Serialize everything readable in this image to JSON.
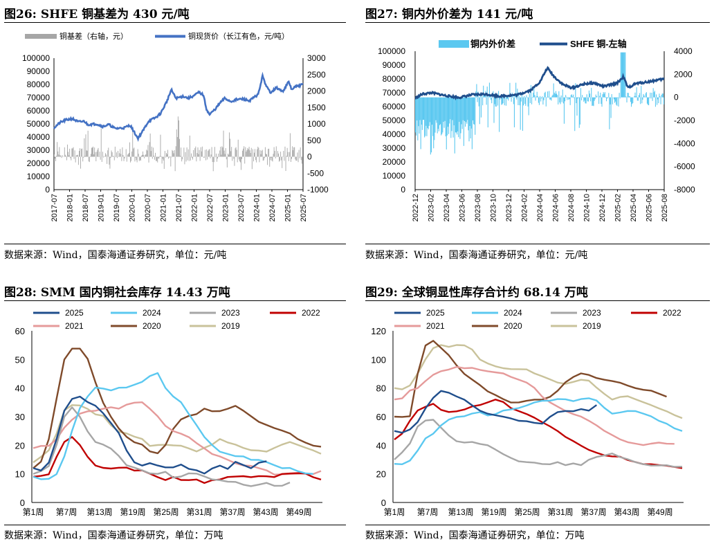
{
  "panels": {
    "p26": {
      "title": "图26:  SHFE 铜基差为 430 元/吨",
      "source": "数据来源：Wind，国泰海通证券研究，单位：元/吨"
    },
    "p27": {
      "title": "图27:  铜内外价差为 141 元/吨",
      "source": "数据来源：Wind，国泰海通证券研究，单位：元/吨"
    },
    "p28": {
      "title": "图28:  SMM 国内铜社会库存 14.43 万吨",
      "source": "数据来源：Wind，国泰海通证券研究，单位：万吨"
    },
    "p29": {
      "title": "图29:  全球铜显性库存合计约 68.14 万吨",
      "source": "数据来源：Wind，国泰海通证券研究，单位：万吨"
    }
  },
  "colors": {
    "basis_bar": "#a6a6a6",
    "spot_line": "#4472c4",
    "spread_bar": "#5bc8f0",
    "shfe_line": "#1f4e8c",
    "y2025": "#1f4e8c",
    "y2024": "#5bc8f0",
    "y2023": "#a6a6a6",
    "y2022": "#c00000",
    "y2021": "#e59a9a",
    "y2020": "#7f4a2a",
    "y2019": "#c9c29a"
  },
  "chart_data": [
    {
      "id": "c26",
      "type": "bar+line",
      "title": "SHFE 铜基差为 430 元/吨",
      "legend": [
        "铜基差（右轴，元）",
        "铜现货价（长江有色，元/吨）"
      ],
      "left_axis": {
        "ticks": [
          "100000",
          "90000",
          "80000",
          "70000",
          "60000",
          "50000",
          "40000",
          "30000",
          "20000",
          "10000",
          "0"
        ],
        "ylim": [
          0,
          100000
        ]
      },
      "right_axis": {
        "ticks": [
          "3000",
          "2500",
          "2000",
          "1500",
          "1000",
          "500",
          "0",
          "-500",
          "-1000"
        ],
        "ylim": [
          -1000,
          3000
        ]
      },
      "x_ticks": [
        "2017-07",
        "2018-01",
        "2018-07",
        "2019-01",
        "2019-07",
        "2020-01",
        "2020-07",
        "2021-01",
        "2021-07",
        "2022-01",
        "2022-07",
        "2023-01",
        "2023-07",
        "2024-01",
        "2024-07",
        "2025-01",
        "2025-07"
      ],
      "x_range": [
        2017.5,
        2025.67
      ],
      "spot_price": [
        [
          2017.5,
          47000
        ],
        [
          2017.7,
          51000
        ],
        [
          2017.9,
          53000
        ],
        [
          2018.1,
          54000
        ],
        [
          2018.3,
          51500
        ],
        [
          2018.5,
          52000
        ],
        [
          2018.6,
          49500
        ],
        [
          2018.9,
          50000
        ],
        [
          2019.1,
          48000
        ],
        [
          2019.3,
          49500
        ],
        [
          2019.5,
          46500
        ],
        [
          2019.8,
          47000
        ],
        [
          2020.0,
          49000
        ],
        [
          2020.15,
          43000
        ],
        [
          2020.25,
          39000
        ],
        [
          2020.4,
          44000
        ],
        [
          2020.6,
          52000
        ],
        [
          2020.85,
          55000
        ],
        [
          2021.0,
          58000
        ],
        [
          2021.2,
          67000
        ],
        [
          2021.35,
          76000
        ],
        [
          2021.5,
          69500
        ],
        [
          2021.75,
          71000
        ],
        [
          2021.9,
          69500
        ],
        [
          2022.1,
          71500
        ],
        [
          2022.25,
          74000
        ],
        [
          2022.4,
          72000
        ],
        [
          2022.5,
          61500
        ],
        [
          2022.6,
          57000
        ],
        [
          2022.8,
          61500
        ],
        [
          2022.95,
          66000
        ],
        [
          2023.1,
          69500
        ],
        [
          2023.3,
          67000
        ],
        [
          2023.5,
          68500
        ],
        [
          2023.7,
          69000
        ],
        [
          2023.9,
          67500
        ],
        [
          2024.0,
          69000
        ],
        [
          2024.2,
          72500
        ],
        [
          2024.35,
          87000
        ],
        [
          2024.45,
          79000
        ],
        [
          2024.6,
          74000
        ],
        [
          2024.8,
          77500
        ],
        [
          2025.0,
          74500
        ],
        [
          2025.2,
          82000
        ],
        [
          2025.3,
          76000
        ],
        [
          2025.4,
          78000
        ],
        [
          2025.67,
          80000
        ]
      ],
      "basis_note": "daily basis bars, mostly between -300 and +600 元/吨 with spikes up to ~1600"
    },
    {
      "id": "c27",
      "type": "bar+line",
      "title": "铜内外价差为 141 元/吨",
      "legend": [
        "铜内外价差",
        "SHFE 铜-左轴"
      ],
      "left_axis": {
        "ticks": [
          "100000",
          "90000",
          "80000",
          "70000",
          "60000",
          "50000",
          "40000",
          "30000",
          "20000",
          "10000",
          "0"
        ],
        "ylim": [
          0,
          100000
        ]
      },
      "right_axis": {
        "ticks": [
          "4000",
          "2000",
          "0",
          "-2000",
          "-4000",
          "-6000",
          "-8000"
        ],
        "ylim": [
          -8000,
          4000
        ]
      },
      "x_ticks": [
        "2022-12",
        "2023-02",
        "2023-04",
        "2023-06",
        "2023-08",
        "2023-10",
        "2023-12",
        "2024-02",
        "2024-04",
        "2024-06",
        "2024-08",
        "2024-10",
        "2024-12",
        "2025-02",
        "2025-04",
        "2025-06",
        "2025-08"
      ],
      "x_range": [
        2022.92,
        2025.67
      ],
      "shfe_price": [
        [
          2022.92,
          66000
        ],
        [
          2023.0,
          69000
        ],
        [
          2023.1,
          70000
        ],
        [
          2023.25,
          68000
        ],
        [
          2023.4,
          66500
        ],
        [
          2023.55,
          68500
        ],
        [
          2023.7,
          69000
        ],
        [
          2023.85,
          67500
        ],
        [
          2023.95,
          68000
        ],
        [
          2024.05,
          68500
        ],
        [
          2024.2,
          72000
        ],
        [
          2024.3,
          78000
        ],
        [
          2024.38,
          88000
        ],
        [
          2024.45,
          82000
        ],
        [
          2024.55,
          76000
        ],
        [
          2024.65,
          73500
        ],
        [
          2024.8,
          76500
        ],
        [
          2024.9,
          77000
        ],
        [
          2025.0,
          74500
        ],
        [
          2025.15,
          77000
        ],
        [
          2025.22,
          81500
        ],
        [
          2025.27,
          73500
        ],
        [
          2025.35,
          76500
        ],
        [
          2025.5,
          78000
        ],
        [
          2025.67,
          80000
        ]
      ],
      "spread_note": "daily spread bars, ~ -2000 to -4000 until mid-2023, then oscillating around 0 with spike to ~4000 in 2025-03"
    },
    {
      "id": "c28",
      "type": "line",
      "title": "SMM 国内铜社会库存 14.43 万吨",
      "ylim": [
        0,
        60
      ],
      "y_ticks": [
        "60",
        "50",
        "40",
        "30",
        "20",
        "10",
        "0"
      ],
      "x_ticks": [
        "第1周",
        "第7周",
        "第13周",
        "第19周",
        "第25周",
        "第31周",
        "第37周",
        "第43周",
        "第49周"
      ],
      "weeks": 53,
      "series": [
        {
          "name": "2025",
          "color_key": "y2025",
          "values": [
            12,
            11,
            14,
            22,
            32,
            36,
            37,
            35,
            34,
            31,
            28,
            24,
            18,
            14,
            13,
            14,
            13,
            12,
            12,
            13,
            12,
            11,
            10,
            12,
            13,
            12,
            14,
            13,
            12,
            14,
            14.43
          ]
        },
        {
          "name": "2024",
          "color_key": "y2024",
          "values": [
            9,
            8,
            8,
            10,
            16,
            25,
            33,
            37,
            40,
            40,
            39,
            40,
            40,
            41,
            42,
            44,
            45,
            40,
            37,
            35,
            31,
            27,
            23,
            20,
            18,
            17,
            16,
            16,
            15,
            15,
            14,
            13,
            12,
            12,
            11,
            10,
            10
          ]
        },
        {
          "name": "2023",
          "color_key": "y2023",
          "values": [
            10,
            11,
            13,
            20,
            30,
            33,
            30,
            25,
            21,
            20,
            19,
            16,
            13,
            12,
            11,
            10,
            10,
            11,
            9,
            9,
            10,
            10,
            9,
            8,
            8,
            7,
            7,
            6,
            6,
            6,
            7,
            6,
            6,
            7
          ]
        },
        {
          "name": "2022",
          "color_key": "y2022",
          "values": [
            9,
            9,
            10,
            16,
            21,
            23,
            20,
            16,
            13,
            12,
            12,
            12,
            12,
            11,
            11,
            10,
            9,
            8,
            9,
            8,
            8,
            8,
            7,
            8,
            8,
            9,
            9,
            9,
            9,
            9,
            9,
            9,
            10,
            10,
            10,
            10,
            9,
            8
          ]
        },
        {
          "name": "2021",
          "color_key": "y2021",
          "values": [
            19,
            20,
            20,
            22,
            26,
            29,
            31,
            32,
            32,
            33,
            33,
            33,
            34,
            35,
            35,
            33,
            30,
            27,
            25,
            24,
            23,
            21,
            19,
            17,
            16,
            15,
            14,
            13,
            13,
            12,
            11,
            10,
            10,
            10,
            10,
            10,
            10,
            11
          ]
        },
        {
          "name": "2020",
          "color_key": "y2020",
          "values": [
            12,
            14,
            22,
            36,
            50,
            54,
            54,
            50,
            42,
            35,
            30,
            26,
            23,
            21,
            20,
            18,
            17,
            20,
            26,
            29,
            30,
            31,
            33,
            32,
            32,
            33,
            34,
            32,
            30,
            28,
            27,
            26,
            25,
            24,
            22,
            21,
            20,
            19.5
          ]
        },
        {
          "name": "2019",
          "color_key": "y2019",
          "values": [
            14,
            16,
            18,
            24,
            32,
            34,
            34,
            33,
            31,
            30,
            27,
            25,
            24,
            23,
            22,
            20,
            20,
            20,
            20,
            20,
            19,
            18,
            19,
            20,
            22,
            21,
            20,
            19,
            18,
            18,
            18,
            19,
            20,
            21,
            20,
            19,
            18,
            17
          ]
        }
      ]
    },
    {
      "id": "c29",
      "type": "line",
      "title": "全球铜显性库存合计约 68.14 万吨",
      "ylim": [
        0,
        120
      ],
      "y_ticks": [
        "120",
        "100",
        "80",
        "60",
        "40",
        "20",
        "0"
      ],
      "x_ticks": [
        "第1周",
        "第7周",
        "第13周",
        "第19周",
        "第25周",
        "第31周",
        "第37周",
        "第43周",
        "第49周"
      ],
      "weeks": 53,
      "series": [
        {
          "name": "2025",
          "color_key": "y2025",
          "values": [
            50,
            49,
            51,
            56,
            66,
            73,
            78,
            77,
            74,
            72,
            68,
            64,
            62,
            61,
            60,
            59,
            57,
            57,
            56,
            55,
            60,
            63,
            64,
            64,
            65,
            64,
            68.14
          ]
        },
        {
          "name": "2024",
          "color_key": "y2024",
          "values": [
            27,
            27,
            29,
            36,
            45,
            48,
            54,
            58,
            60,
            60,
            62,
            63,
            61,
            62,
            64,
            65,
            66,
            68,
            70,
            71,
            71,
            72,
            72,
            71,
            72,
            73,
            71,
            66,
            62,
            63,
            64,
            64,
            62,
            60,
            57,
            55,
            52,
            50
          ]
        },
        {
          "name": "2023",
          "color_key": "y2023",
          "values": [
            30,
            35,
            41,
            53,
            57,
            58,
            52,
            47,
            43,
            42,
            42,
            41,
            40,
            37,
            34,
            31,
            29,
            28,
            28,
            27,
            27,
            28,
            26,
            27,
            26,
            30,
            32,
            33,
            34,
            32,
            30,
            28,
            27,
            26,
            26,
            26,
            25,
            25
          ]
        },
        {
          "name": "2022",
          "color_key": "y2022",
          "values": [
            44,
            48,
            57,
            64,
            67,
            69,
            65,
            63,
            64,
            65,
            67,
            68,
            70,
            72,
            70,
            66,
            64,
            62,
            59,
            56,
            53,
            50,
            46,
            43,
            40,
            37,
            35,
            33,
            32,
            32,
            30,
            28,
            27,
            27,
            26,
            26,
            25,
            24
          ]
        },
        {
          "name": "2021",
          "color_key": "y2021",
          "values": [
            72,
            73,
            78,
            80,
            85,
            89,
            92,
            93,
            95,
            94,
            94,
            93,
            92,
            91,
            90,
            88,
            86,
            84,
            80,
            74,
            70,
            67,
            64,
            62,
            60,
            57,
            54,
            50,
            47,
            44,
            42,
            41,
            40,
            41,
            42,
            41,
            41
          ]
        },
        {
          "name": "2020",
          "color_key": "y2020",
          "values": [
            60,
            60,
            60,
            90,
            110,
            113,
            108,
            103,
            96,
            90,
            86,
            82,
            78,
            75,
            72,
            70,
            70,
            71,
            72,
            72,
            74,
            78,
            84,
            88,
            90,
            89,
            87,
            86,
            85,
            84,
            82,
            80,
            79,
            78,
            76,
            74
          ]
        },
        {
          "name": "2019",
          "color_key": "y2019",
          "values": [
            80,
            79,
            82,
            90,
            100,
            108,
            110,
            109,
            110,
            110,
            107,
            100,
            97,
            95,
            94,
            93,
            93,
            93,
            90,
            88,
            86,
            84,
            83,
            84,
            86,
            85,
            80,
            76,
            72,
            74,
            74,
            72,
            70,
            68,
            66,
            64,
            61,
            59
          ]
        }
      ]
    }
  ]
}
